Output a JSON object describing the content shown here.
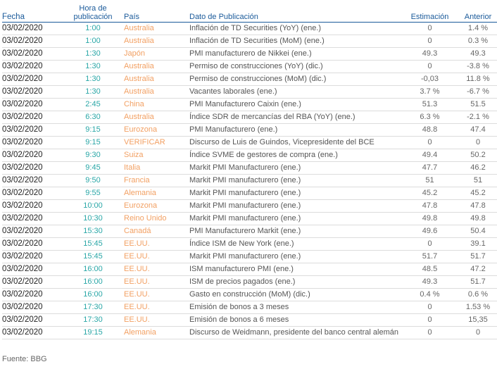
{
  "header": {
    "fecha": "Fecha",
    "hora": "Hora de publicación",
    "pais": "País",
    "dato": "Dato de Publicación",
    "estimacion": "Estimación",
    "anterior": "Anterior"
  },
  "rows": [
    {
      "fecha": "03/02/2020",
      "hora": "1:00",
      "pais": "Australia",
      "dato": "Inflación de TD Securities (YoY) (ene.)",
      "estimacion": "0",
      "anterior": "1.4 %"
    },
    {
      "fecha": "03/02/2020",
      "hora": "1:00",
      "pais": "Australia",
      "dato": "Inflación de TD Securities (MoM) (ene.)",
      "estimacion": "0",
      "anterior": "0.3 %"
    },
    {
      "fecha": "03/02/2020",
      "hora": "1:30",
      "pais": "Japón",
      "dato": "PMI manufacturero de Nikkei (ene.)",
      "estimacion": "49.3",
      "anterior": "49.3"
    },
    {
      "fecha": "03/02/2020",
      "hora": "1:30",
      "pais": "Australia",
      "dato": "Permiso de construcciones (YoY) (dic.)",
      "estimacion": "0",
      "anterior": "-3.8 %"
    },
    {
      "fecha": "03/02/2020",
      "hora": "1:30",
      "pais": "Australia",
      "dato": "Permiso de construcciones (MoM) (dic.)",
      "estimacion": "-0,03",
      "anterior": "11.8 %"
    },
    {
      "fecha": "03/02/2020",
      "hora": "1:30",
      "pais": "Australia",
      "dato": "Vacantes laborales (ene.)",
      "estimacion": "3.7 %",
      "anterior": "-6.7 %"
    },
    {
      "fecha": "03/02/2020",
      "hora": "2:45",
      "pais": "China",
      "dato": "PMI Manufacturero Caixin (ene.)",
      "estimacion": "51.3",
      "anterior": "51.5"
    },
    {
      "fecha": "03/02/2020",
      "hora": "6:30",
      "pais": "Australia",
      "dato": "Índice SDR de mercancías del RBA (YoY) (ene.)",
      "estimacion": "6.3 %",
      "anterior": "-2.1 %"
    },
    {
      "fecha": "03/02/2020",
      "hora": "9:15",
      "pais": "Eurozona",
      "dato": "PMI Manufacturero (ene.)",
      "estimacion": "48.8",
      "anterior": "47.4"
    },
    {
      "fecha": "03/02/2020",
      "hora": "9:15",
      "pais": "VERIFICAR",
      "dato": "Discurso de Luis de Guindos, Vicepresidente del BCE",
      "estimacion": "0",
      "anterior": "0"
    },
    {
      "fecha": "03/02/2020",
      "hora": "9:30",
      "pais": "Suiza",
      "dato": "Índice SVME de gestores de compra (ene.)",
      "estimacion": "49.4",
      "anterior": "50.2"
    },
    {
      "fecha": "03/02/2020",
      "hora": "9:45",
      "pais": "Italia",
      "dato": "Markit PMI Manufacturero (ene.)",
      "estimacion": "47.7",
      "anterior": "46.2"
    },
    {
      "fecha": "03/02/2020",
      "hora": "9:50",
      "pais": "Francia",
      "dato": "Markit PMI manufacturero (ene.)",
      "estimacion": "51",
      "anterior": "51"
    },
    {
      "fecha": "03/02/2020",
      "hora": "9:55",
      "pais": "Alemania",
      "dato": "Markit PMI manufacturero (ene.)",
      "estimacion": "45.2",
      "anterior": "45.2"
    },
    {
      "fecha": "03/02/2020",
      "hora": "10:00",
      "pais": "Eurozona",
      "dato": "Markit PMI manufacturero (ene.)",
      "estimacion": "47.8",
      "anterior": "47.8"
    },
    {
      "fecha": "03/02/2020",
      "hora": "10:30",
      "pais": "Reino Unido",
      "dato": "Markit PMI manufacturero (ene.)",
      "estimacion": "49.8",
      "anterior": "49.8"
    },
    {
      "fecha": "03/02/2020",
      "hora": "15:30",
      "pais": "Canadá",
      "dato": "PMI Manufacturero Markit (ene.)",
      "estimacion": "49.6",
      "anterior": "50.4"
    },
    {
      "fecha": "03/02/2020",
      "hora": "15:45",
      "pais": "EE.UU.",
      "dato": "Índice ISM de New York (ene.)",
      "estimacion": "0",
      "anterior": "39.1"
    },
    {
      "fecha": "03/02/2020",
      "hora": "15:45",
      "pais": "EE.UU.",
      "dato": "Markit PMI manufacturero (ene.)",
      "estimacion": "51.7",
      "anterior": "51.7"
    },
    {
      "fecha": "03/02/2020",
      "hora": "16:00",
      "pais": "EE.UU.",
      "dato": "ISM manufacturero PMI (ene.)",
      "estimacion": "48.5",
      "anterior": "47.2"
    },
    {
      "fecha": "03/02/2020",
      "hora": "16:00",
      "pais": "EE.UU.",
      "dato": "ISM de precios pagados (ene.)",
      "estimacion": "49.3",
      "anterior": "51.7"
    },
    {
      "fecha": "03/02/2020",
      "hora": "16:00",
      "pais": "EE.UU.",
      "dato": "Gasto en construcción (MoM) (dic.)",
      "estimacion": "0.4 %",
      "anterior": "0.6 %"
    },
    {
      "fecha": "03/02/2020",
      "hora": "17:30",
      "pais": "EE.UU.",
      "dato": "Emisión de bonos a 3 meses",
      "estimacion": "0",
      "anterior": "1.53 %"
    },
    {
      "fecha": "03/02/2020",
      "hora": "17:30",
      "pais": "EE.UU.",
      "dato": "Emisión de bonos a 6 meses",
      "estimacion": "0",
      "anterior": "15,35"
    },
    {
      "fecha": "03/02/2020",
      "hora": "19:15",
      "pais": "Alemania",
      "dato": "Discurso de Weidmann, presidente del banco central alemán",
      "estimacion": "0",
      "anterior": "0"
    }
  ],
  "source": "Fuente: BBG"
}
